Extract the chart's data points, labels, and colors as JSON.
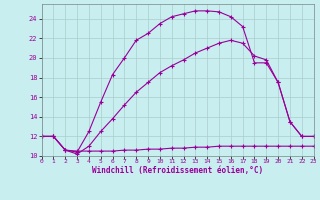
{
  "xlabel": "Windchill (Refroidissement éolien,°C)",
  "background_color": "#c8eef0",
  "line_color": "#990099",
  "grid_color": "#aacccc",
  "xlim": [
    0,
    23
  ],
  "ylim": [
    10,
    25.5
  ],
  "yticks": [
    10,
    12,
    14,
    16,
    18,
    20,
    22,
    24
  ],
  "xticks": [
    0,
    1,
    2,
    3,
    4,
    5,
    6,
    7,
    8,
    9,
    10,
    11,
    12,
    13,
    14,
    15,
    16,
    17,
    18,
    19,
    20,
    21,
    22,
    23
  ],
  "curve1_x": [
    0,
    1,
    2,
    3,
    4,
    5,
    6,
    7,
    8,
    9,
    10,
    11,
    12,
    13,
    14,
    15,
    16,
    17,
    18,
    19,
    20,
    21,
    22,
    23
  ],
  "curve1_y": [
    12,
    12,
    10.6,
    10.4,
    12.5,
    15.5,
    18.3,
    20.0,
    21.8,
    22.5,
    23.5,
    24.2,
    24.5,
    24.8,
    24.8,
    24.7,
    24.2,
    23.2,
    19.5,
    19.5,
    17.5,
    13.5,
    12.0,
    12.0
  ],
  "curve2_x": [
    0,
    1,
    2,
    3,
    4,
    5,
    6,
    7,
    8,
    9,
    10,
    11,
    12,
    13,
    14,
    15,
    16,
    17,
    18,
    19,
    20,
    21,
    22,
    23
  ],
  "curve2_y": [
    12,
    12,
    10.6,
    10.2,
    11.0,
    12.5,
    13.8,
    15.2,
    16.5,
    17.5,
    18.5,
    19.2,
    19.8,
    20.5,
    21.0,
    21.5,
    21.8,
    21.5,
    20.2,
    19.8,
    17.5,
    13.5,
    12.0,
    12.0
  ],
  "curve3_x": [
    0,
    1,
    2,
    3,
    4,
    5,
    6,
    7,
    8,
    9,
    10,
    11,
    12,
    13,
    14,
    15,
    16,
    17,
    18,
    19,
    20,
    21,
    22,
    23
  ],
  "curve3_y": [
    12,
    12,
    10.6,
    10.5,
    10.5,
    10.5,
    10.5,
    10.6,
    10.6,
    10.7,
    10.7,
    10.8,
    10.8,
    10.9,
    10.9,
    11.0,
    11.0,
    11.0,
    11.0,
    11.0,
    11.0,
    11.0,
    11.0,
    11.0
  ]
}
